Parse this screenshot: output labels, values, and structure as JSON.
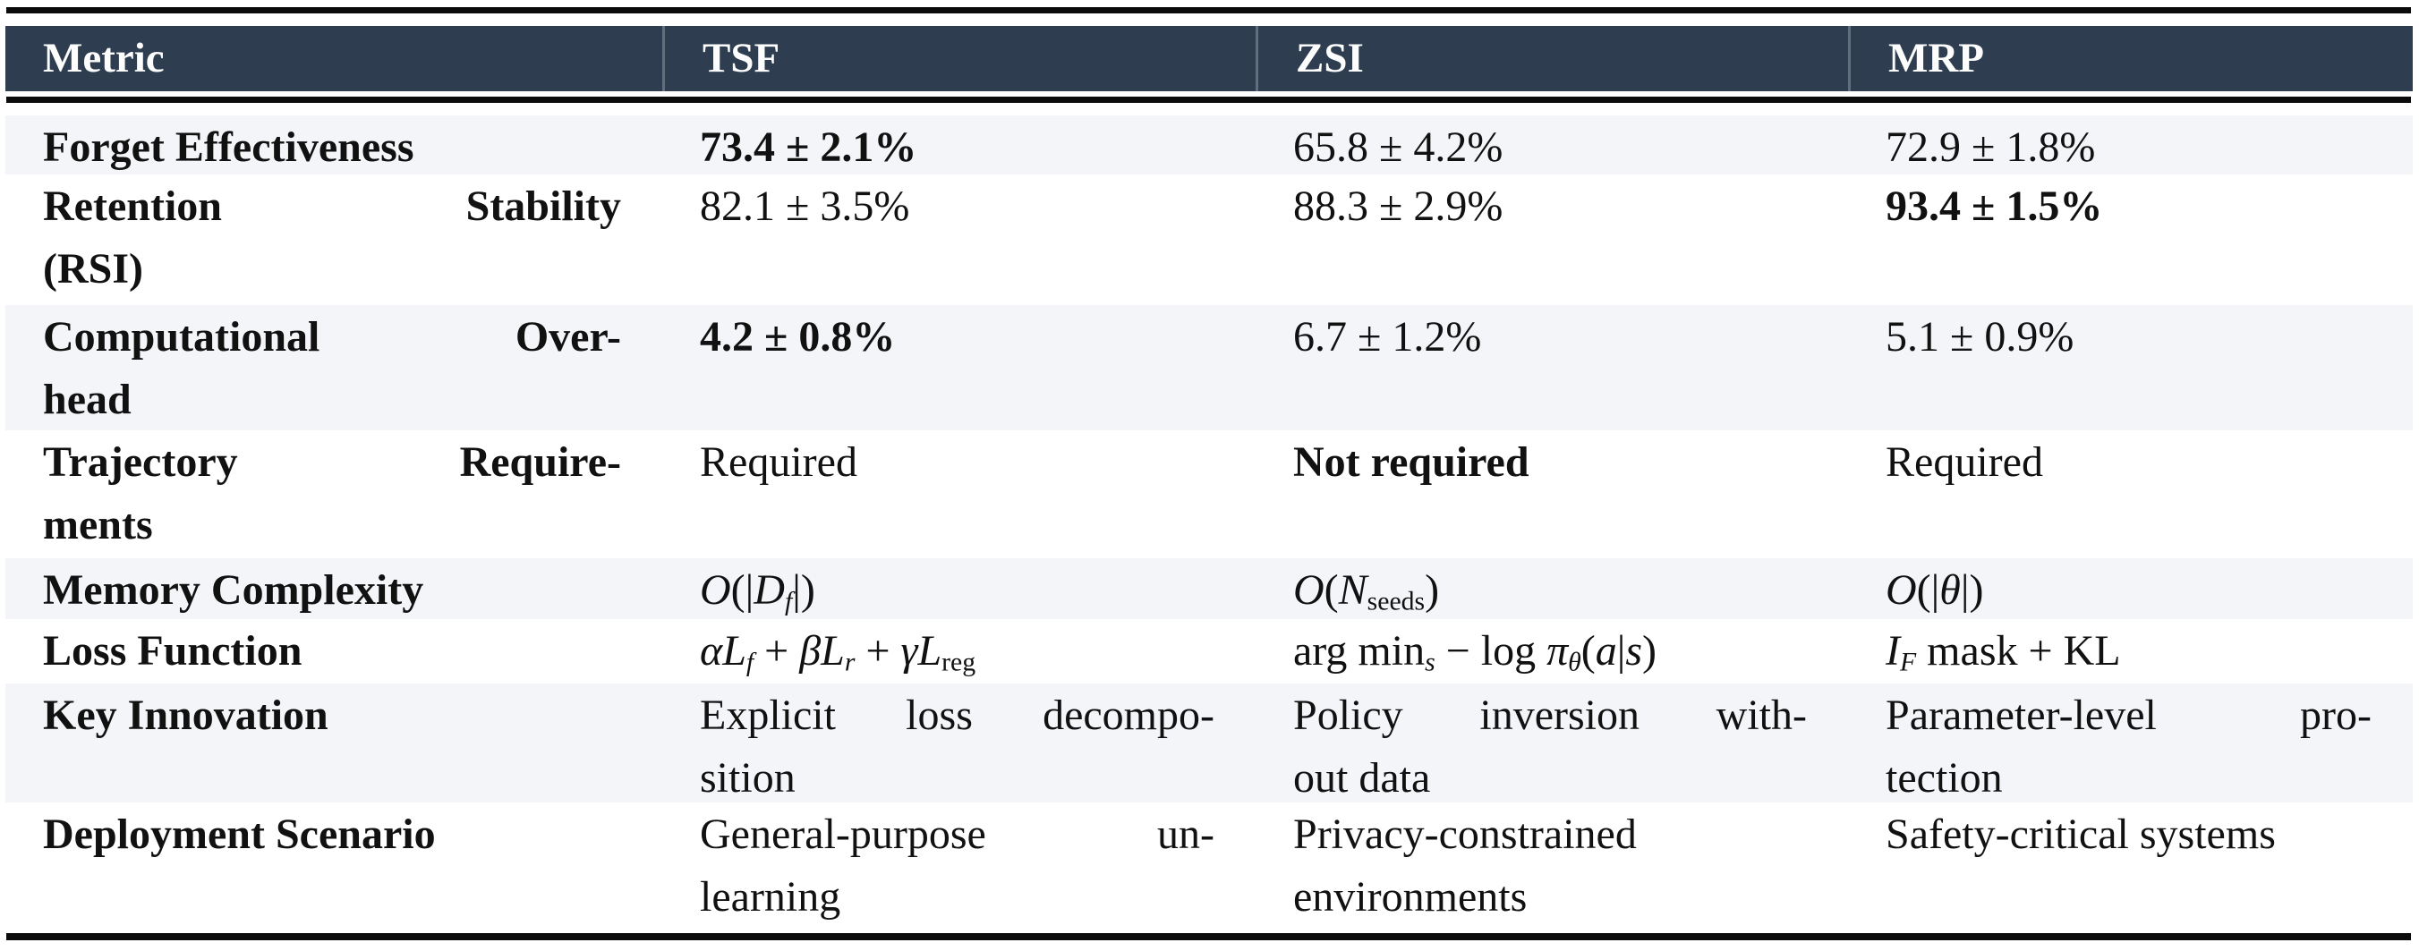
{
  "colors": {
    "header_background": "#2e3e50",
    "header_text": "#fdfdfd",
    "stripe_background": "#f3f5f8",
    "body_text": "#111111",
    "rule_color": "#0b0b0b"
  },
  "table": {
    "columns": [
      {
        "key": "metric",
        "label": "Metric"
      },
      {
        "key": "tsf",
        "label": "TSF"
      },
      {
        "key": "zsi",
        "label": "ZSI"
      },
      {
        "key": "mrp",
        "label": "MRP"
      }
    ],
    "rows": [
      {
        "name": "forget-effectiveness",
        "cells": [
          {
            "bold": true,
            "lines": [
              {
                "segs": [
                  {
                    "t": "Forget Effectiveness"
                  }
                ]
              }
            ]
          },
          {
            "bold": true,
            "lines": [
              {
                "segs": [
                  {
                    "t": "73.4 ± 2.1%"
                  }
                ]
              }
            ]
          },
          {
            "bold": false,
            "lines": [
              {
                "segs": [
                  {
                    "t": "65.8 ± 4.2%"
                  }
                ]
              }
            ]
          },
          {
            "bold": false,
            "lines": [
              {
                "segs": [
                  {
                    "t": "72.9 ± 1.8%"
                  }
                ]
              }
            ]
          }
        ]
      },
      {
        "name": "retention-stability",
        "cells": [
          {
            "bold": true,
            "lines": [
              {
                "stretch": true,
                "segs": [
                  {
                    "t": "Retention Stability"
                  }
                ]
              },
              {
                "segs": [
                  {
                    "t": "(RSI)"
                  }
                ]
              }
            ]
          },
          {
            "bold": false,
            "lines": [
              {
                "segs": [
                  {
                    "t": "82.1 ± 3.5%"
                  }
                ]
              }
            ]
          },
          {
            "bold": false,
            "lines": [
              {
                "segs": [
                  {
                    "t": "88.3 ± 2.9%"
                  }
                ]
              }
            ]
          },
          {
            "bold": true,
            "lines": [
              {
                "segs": [
                  {
                    "t": "93.4 ± 1.5%"
                  }
                ]
              }
            ]
          }
        ]
      },
      {
        "name": "computational-overhead",
        "cells": [
          {
            "bold": true,
            "lines": [
              {
                "stretch": true,
                "segs": [
                  {
                    "t": "Computational Over-"
                  }
                ]
              },
              {
                "segs": [
                  {
                    "t": "head"
                  }
                ]
              }
            ]
          },
          {
            "bold": true,
            "lines": [
              {
                "segs": [
                  {
                    "t": "4.2 ± 0.8%"
                  }
                ]
              }
            ]
          },
          {
            "bold": false,
            "lines": [
              {
                "segs": [
                  {
                    "t": "6.7 ± 1.2%"
                  }
                ]
              }
            ]
          },
          {
            "bold": false,
            "lines": [
              {
                "segs": [
                  {
                    "t": "5.1 ± 0.9%"
                  }
                ]
              }
            ]
          }
        ]
      },
      {
        "name": "trajectory-requirements",
        "cells": [
          {
            "bold": true,
            "lines": [
              {
                "stretch": true,
                "segs": [
                  {
                    "t": "Trajectory Require-"
                  }
                ]
              },
              {
                "segs": [
                  {
                    "t": "ments"
                  }
                ]
              }
            ]
          },
          {
            "bold": false,
            "lines": [
              {
                "segs": [
                  {
                    "t": "Required"
                  }
                ]
              }
            ]
          },
          {
            "bold": true,
            "lines": [
              {
                "segs": [
                  {
                    "t": "Not required"
                  }
                ]
              }
            ]
          },
          {
            "bold": false,
            "lines": [
              {
                "segs": [
                  {
                    "t": "Required"
                  }
                ]
              }
            ]
          }
        ]
      },
      {
        "name": "memory-complexity",
        "cells": [
          {
            "bold": true,
            "lines": [
              {
                "segs": [
                  {
                    "t": "Memory Complexity"
                  }
                ]
              }
            ]
          },
          {
            "bold": false,
            "lines": [
              {
                "segs": [
                  {
                    "s": "cal",
                    "t": "O"
                  },
                  {
                    "t": "(|"
                  },
                  {
                    "s": "cal",
                    "t": "D"
                  },
                  {
                    "s": "sub",
                    "t": "f"
                  },
                  {
                    "t": "|)"
                  }
                ]
              }
            ]
          },
          {
            "bold": false,
            "lines": [
              {
                "segs": [
                  {
                    "s": "cal",
                    "t": "O"
                  },
                  {
                    "t": "("
                  },
                  {
                    "s": "it",
                    "t": "N"
                  },
                  {
                    "s": "subrm",
                    "t": "seeds"
                  },
                  {
                    "t": ")"
                  }
                ]
              }
            ]
          },
          {
            "bold": false,
            "lines": [
              {
                "segs": [
                  {
                    "s": "cal",
                    "t": "O"
                  },
                  {
                    "t": "(|"
                  },
                  {
                    "s": "it",
                    "t": "θ"
                  },
                  {
                    "t": "|)"
                  }
                ]
              }
            ]
          }
        ]
      },
      {
        "name": "loss-function",
        "cells": [
          {
            "bold": true,
            "lines": [
              {
                "segs": [
                  {
                    "t": "Loss Function"
                  }
                ]
              }
            ]
          },
          {
            "bold": false,
            "lines": [
              {
                "segs": [
                  {
                    "s": "it",
                    "t": "α"
                  },
                  {
                    "s": "cal",
                    "t": "L"
                  },
                  {
                    "s": "sub",
                    "t": "f"
                  },
                  {
                    "t": " + "
                  },
                  {
                    "s": "it",
                    "t": "β"
                  },
                  {
                    "s": "cal",
                    "t": "L"
                  },
                  {
                    "s": "sub",
                    "t": "r"
                  },
                  {
                    "t": " + "
                  },
                  {
                    "s": "it",
                    "t": "γ"
                  },
                  {
                    "s": "cal",
                    "t": "L"
                  },
                  {
                    "s": "subrm",
                    "t": "reg"
                  }
                ]
              }
            ]
          },
          {
            "bold": false,
            "lines": [
              {
                "segs": [
                  {
                    "t": "arg min"
                  },
                  {
                    "s": "sub",
                    "t": "s"
                  },
                  {
                    "t": " − log "
                  },
                  {
                    "s": "it",
                    "t": "π"
                  },
                  {
                    "s": "sub",
                    "t": "θ"
                  },
                  {
                    "t": "("
                  },
                  {
                    "s": "it",
                    "t": "a"
                  },
                  {
                    "t": "|"
                  },
                  {
                    "s": "it",
                    "t": "s"
                  },
                  {
                    "t": ")"
                  }
                ]
              }
            ]
          },
          {
            "bold": false,
            "lines": [
              {
                "segs": [
                  {
                    "s": "it",
                    "t": "I"
                  },
                  {
                    "s": "sub",
                    "t": "F"
                  },
                  {
                    "t": " mask + KL"
                  }
                ]
              }
            ]
          }
        ]
      },
      {
        "name": "key-innovation",
        "cells": [
          {
            "bold": true,
            "lines": [
              {
                "segs": [
                  {
                    "t": "Key Innovation"
                  }
                ]
              }
            ]
          },
          {
            "bold": false,
            "lines": [
              {
                "stretch": true,
                "segs": [
                  {
                    "t": "Explicit loss decompo-"
                  }
                ]
              },
              {
                "segs": [
                  {
                    "t": "sition"
                  }
                ]
              }
            ]
          },
          {
            "bold": false,
            "lines": [
              {
                "stretch": true,
                "segs": [
                  {
                    "t": "Policy inversion with-"
                  }
                ]
              },
              {
                "segs": [
                  {
                    "t": "out data"
                  }
                ]
              }
            ]
          },
          {
            "bold": false,
            "lines": [
              {
                "stretch": true,
                "segs": [
                  {
                    "t": "Parameter-level pro-"
                  }
                ]
              },
              {
                "segs": [
                  {
                    "t": "tection"
                  }
                ]
              }
            ]
          }
        ]
      },
      {
        "name": "deployment-scenario",
        "cells": [
          {
            "bold": true,
            "lines": [
              {
                "segs": [
                  {
                    "t": "Deployment Scenario"
                  }
                ]
              }
            ]
          },
          {
            "bold": false,
            "lines": [
              {
                "stretch": true,
                "segs": [
                  {
                    "t": "General-purpose un-"
                  }
                ]
              },
              {
                "segs": [
                  {
                    "t": "learning"
                  }
                ]
              }
            ]
          },
          {
            "bold": false,
            "lines": [
              {
                "segs": [
                  {
                    "t": "Privacy-constrained"
                  }
                ]
              },
              {
                "segs": [
                  {
                    "t": "environments"
                  }
                ]
              }
            ]
          },
          {
            "bold": false,
            "lines": [
              {
                "segs": [
                  {
                    "t": "Safety-critical systems"
                  }
                ]
              }
            ]
          }
        ]
      }
    ]
  }
}
